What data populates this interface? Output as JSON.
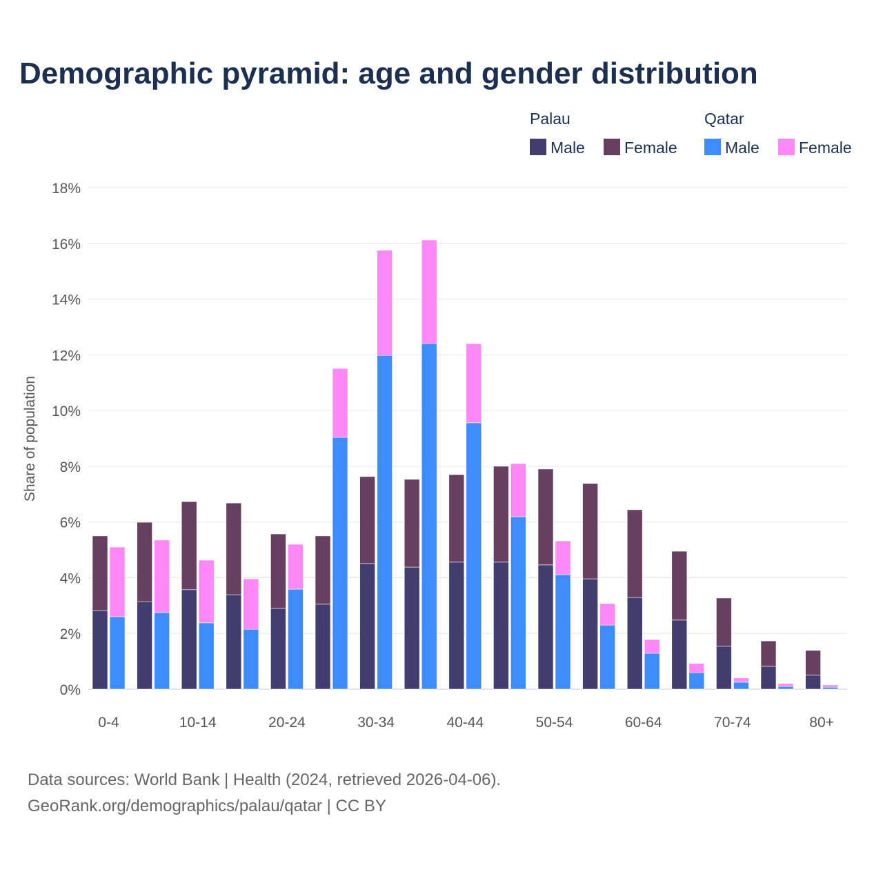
{
  "chart_data": {
    "type": "bar",
    "title": "Demographic pyramid: age and gender distribution",
    "ylabel": "Share of population",
    "xlabel": "",
    "ylim": [
      0,
      18
    ],
    "yticks": [
      "0%",
      "2%",
      "4%",
      "6%",
      "8%",
      "10%",
      "12%",
      "14%",
      "16%",
      "18%"
    ],
    "ytick_values": [
      0,
      2,
      4,
      6,
      8,
      10,
      12,
      14,
      16,
      18
    ],
    "categories": [
      "0-4",
      "5-9",
      "10-14",
      "15-19",
      "20-24",
      "25-29",
      "30-34",
      "35-39",
      "40-44",
      "45-49",
      "50-54",
      "55-59",
      "60-64",
      "65-69",
      "70-74",
      "75-79",
      "80+"
    ],
    "xtick_labels_shown": [
      "0-4",
      "10-14",
      "20-24",
      "30-34",
      "40-44",
      "50-54",
      "60-64",
      "70-74",
      "80+"
    ],
    "stacked": true,
    "grid": true,
    "legend_position": "top-right",
    "groups": [
      {
        "name": "Palau",
        "series": [
          {
            "name": "Male",
            "color": "#413d70",
            "values": [
              2.82,
              3.14,
              3.57,
              3.39,
              2.9,
              3.05,
              4.51,
              4.38,
              4.56,
              4.56,
              4.46,
              3.96,
              3.29,
              2.48,
              1.54,
              0.82,
              0.5
            ]
          },
          {
            "name": "Female",
            "color": "#673f60",
            "values": [
              2.68,
              2.85,
              3.16,
              3.29,
              2.67,
              2.45,
              3.12,
              3.15,
              3.14,
              3.44,
              3.44,
              3.42,
              3.15,
              2.47,
              1.73,
              0.91,
              0.89
            ]
          }
        ]
      },
      {
        "name": "Qatar",
        "series": [
          {
            "name": "Male",
            "color": "#3d8bfd",
            "values": [
              2.6,
              2.75,
              2.38,
              2.15,
              3.59,
              9.04,
              11.98,
              12.4,
              9.56,
              6.19,
              4.11,
              2.3,
              1.29,
              0.59,
              0.25,
              0.1,
              0.07
            ]
          },
          {
            "name": "Female",
            "color": "#ff88f7",
            "values": [
              2.5,
              2.6,
              2.25,
              1.81,
              1.61,
              2.47,
              3.77,
              3.72,
              2.84,
              1.91,
              1.21,
              0.77,
              0.49,
              0.33,
              0.15,
              0.1,
              0.08
            ]
          }
        ]
      }
    ]
  },
  "source_line1": "Data sources: World Bank | Health (2024, retrieved 2026-04-06).",
  "source_line2": "GeoRank.org/demographics/palau/qatar | CC BY"
}
